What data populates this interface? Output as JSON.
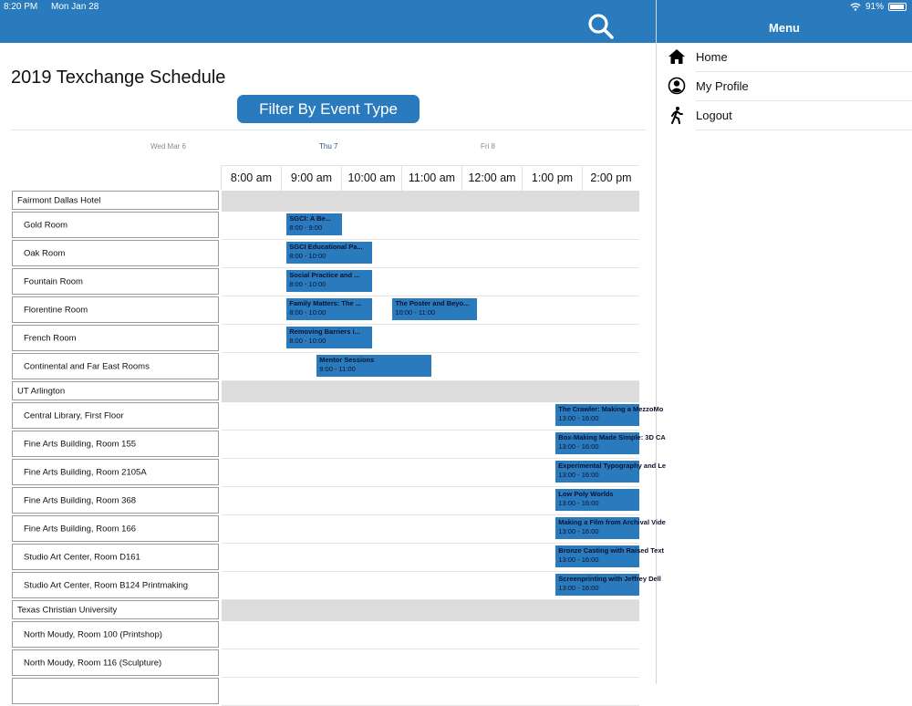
{
  "status": {
    "time": "8:20 PM",
    "date": "Mon Jan 28",
    "battery": "91%"
  },
  "menu": {
    "title": "Menu",
    "items": [
      {
        "label": "Home",
        "icon": "home-icon"
      },
      {
        "label": "My Profile",
        "icon": "profile-icon"
      },
      {
        "label": "Logout",
        "icon": "walking-person-icon"
      }
    ]
  },
  "header": {
    "title": "2019 Texchange Schedule",
    "filter_label": "Filter By Event Type",
    "search_icon": "search-icon"
  },
  "days": [
    {
      "label": "Wed Mar 6",
      "active": false
    },
    {
      "label": "Thu 7",
      "active": true
    },
    {
      "label": "Fri 8",
      "active": false
    }
  ],
  "times": [
    "8:00 am",
    "9:00 am",
    "10:00 am",
    "11:00 am",
    "12:00 am",
    "1:00 pm",
    "2:00 pm"
  ],
  "colors": {
    "accent": "#2a7bbd",
    "group_row": "#dcdcdc"
  },
  "rows": [
    {
      "type": "group",
      "label": "Fairmont Dallas Hotel",
      "events": []
    },
    {
      "type": "room",
      "label": "Gold Room",
      "events": [
        {
          "title": "SGCI: A Be...",
          "time": "8:00 - 9:00",
          "start": 8.58,
          "end": 9.5
        }
      ]
    },
    {
      "type": "room",
      "label": "Oak Room",
      "events": [
        {
          "title": "SGCI Educational Pa...",
          "time": "8:00 - 10:00",
          "start": 8.58,
          "end": 10.0
        }
      ]
    },
    {
      "type": "room",
      "label": "Fountain Room",
      "events": [
        {
          "title": "Social Practice and ...",
          "time": "8:00 - 10:00",
          "start": 8.58,
          "end": 10.0
        }
      ]
    },
    {
      "type": "room",
      "label": "Florentine Room",
      "events": [
        {
          "title": "Family Matters: The ...",
          "time": "8:00 - 10:00",
          "start": 8.58,
          "end": 10.0
        },
        {
          "title": "The Poster and Beyo...",
          "time": "10:00 - 11:00",
          "start": 10.34,
          "end": 11.74
        }
      ]
    },
    {
      "type": "room",
      "label": "French Room",
      "events": [
        {
          "title": "Removing Barriers i...",
          "time": "8:00 - 10:00",
          "start": 8.58,
          "end": 10.0
        }
      ]
    },
    {
      "type": "room",
      "label": "Continental and Far East Rooms",
      "events": [
        {
          "title": "Mentor Sessions",
          "time": "9:00 - 11:00",
          "start": 9.08,
          "end": 10.98
        }
      ]
    },
    {
      "type": "group",
      "label": "UT Arlington",
      "events": []
    },
    {
      "type": "room",
      "label": "Central Library, First Floor",
      "events": [
        {
          "title": "The Crawler: Making a MezzoMo",
          "time": "13:00 - 16:00",
          "start": 13.05,
          "end": 15.0
        }
      ]
    },
    {
      "type": "room",
      "label": "Fine Arts Building, Room 155",
      "events": [
        {
          "title": "Box-Making Made Simple: 3D CA",
          "time": "13:00 - 16:00",
          "start": 13.05,
          "end": 15.0
        }
      ]
    },
    {
      "type": "room",
      "label": "Fine Arts Building, Room 2105A",
      "events": [
        {
          "title": "Experimental Typography and Le",
          "time": "13:00 - 16:00",
          "start": 13.05,
          "end": 15.0
        }
      ]
    },
    {
      "type": "room",
      "label": "Fine Arts Building, Room 368",
      "events": [
        {
          "title": "Low Poly Worlds",
          "time": "13:00 - 16:00",
          "start": 13.05,
          "end": 15.0
        }
      ]
    },
    {
      "type": "room",
      "label": "Fine Arts Building, Room 166",
      "events": [
        {
          "title": "Making a Film from Archival Vide",
          "time": "13:00 - 16:00",
          "start": 13.05,
          "end": 15.0
        }
      ]
    },
    {
      "type": "room",
      "label": "Studio Art Center, Room D161",
      "events": [
        {
          "title": "Bronze Casting with Raised Text",
          "time": "13:00 - 16:00",
          "start": 13.05,
          "end": 15.0
        }
      ]
    },
    {
      "type": "room",
      "label": "Studio Art Center, Room B124 Printmaking",
      "events": [
        {
          "title": "Screenprinting with Jeffrey Dell",
          "time": "13:00 - 16:00",
          "start": 13.05,
          "end": 15.0
        }
      ]
    },
    {
      "type": "group",
      "label": "Texas Christian University",
      "events": []
    },
    {
      "type": "room",
      "label": "North Moudy, Room 100 (Printshop)",
      "events": []
    },
    {
      "type": "room",
      "label": "North Moudy, Room 116 (Sculpture)",
      "events": []
    },
    {
      "type": "room",
      "label": "",
      "events": []
    }
  ]
}
